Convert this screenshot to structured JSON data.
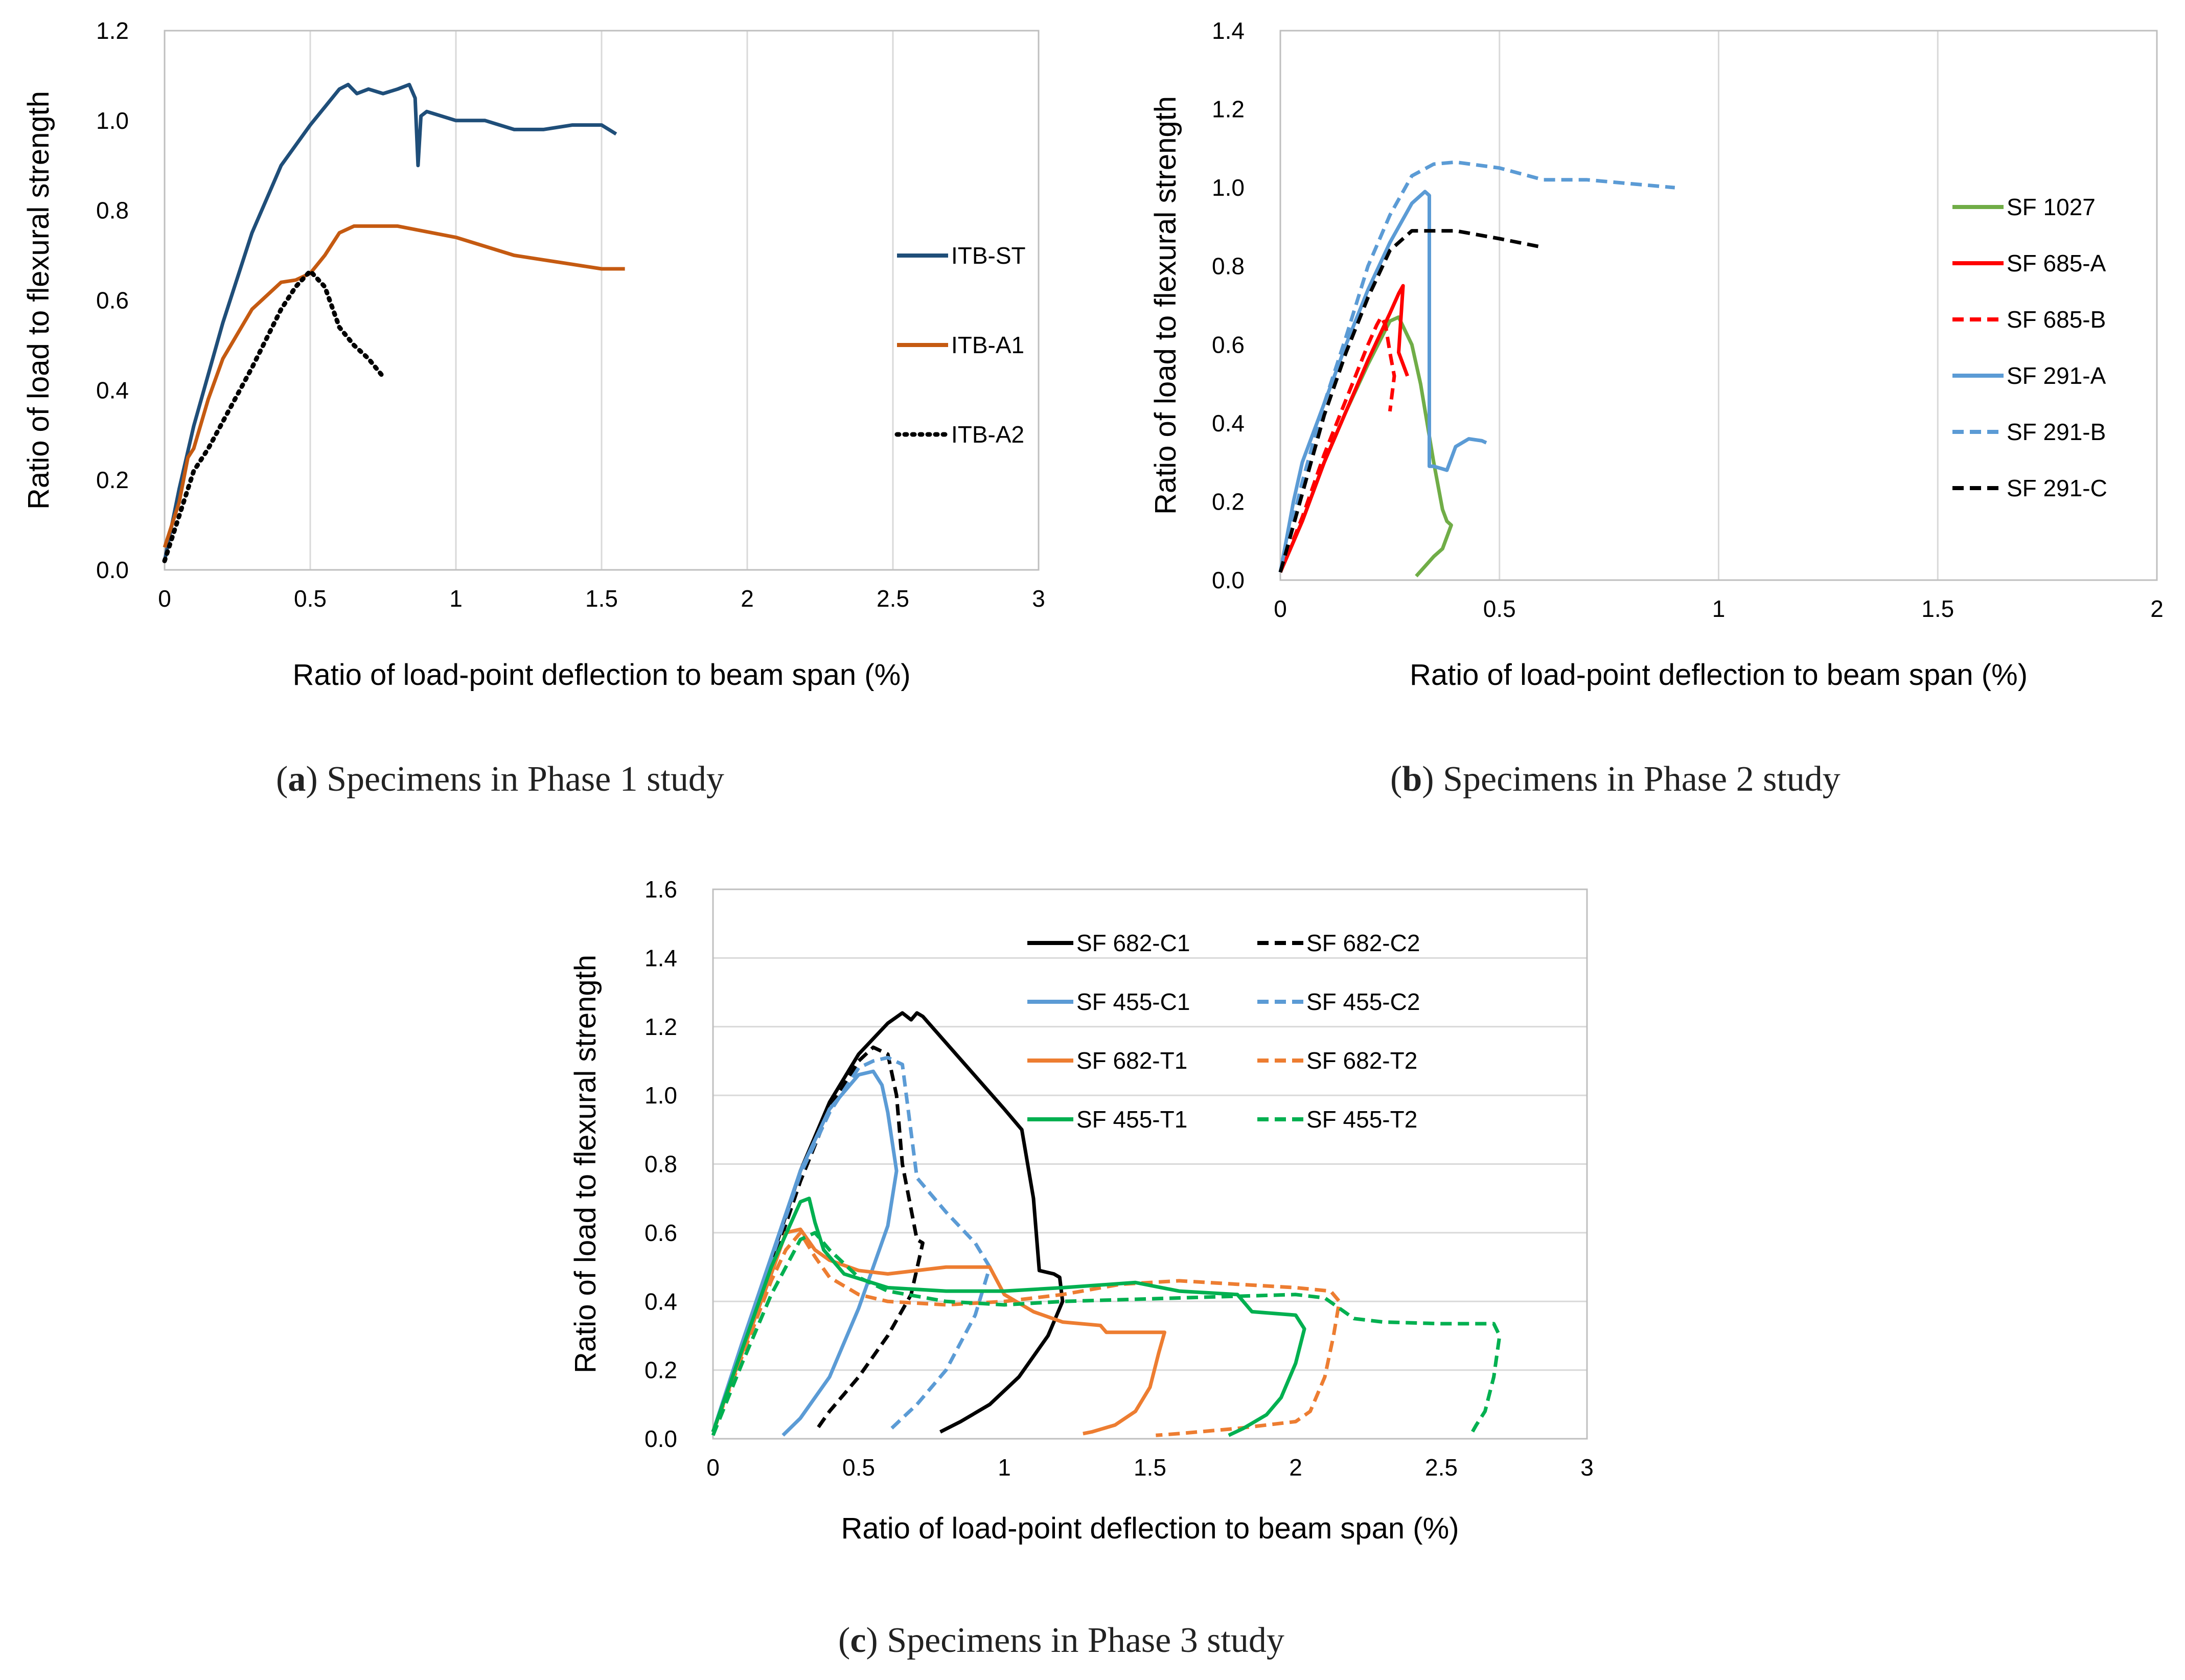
{
  "captions": [
    {
      "letter": "a",
      "open": "(",
      "close": ")",
      "text": " Specimens in Phase 1 study"
    },
    {
      "letter": "b",
      "open": "(",
      "close": ")",
      "text": " Specimens in Phase 2 study"
    },
    {
      "letter": "c",
      "open": "(",
      "close": ")",
      "text": " Specimens in Phase 3 study"
    }
  ],
  "chart_data": [
    {
      "id": "phase1",
      "type": "line",
      "xlabel": "Ratio of load-point deflection to beam span (%)",
      "ylabel": "Ratio of load to flexural strength",
      "xlim": [
        0,
        3
      ],
      "ylim": [
        0,
        1.2
      ],
      "xticks": [
        0,
        0.5,
        1,
        1.5,
        2,
        2.5,
        3
      ],
      "xtick_labels": [
        "0",
        "0.5",
        "1",
        "1.5",
        "2",
        "2.5",
        "3"
      ],
      "yticks": [
        0,
        0.2,
        0.4,
        0.6,
        0.8,
        1.0,
        1.2
      ],
      "ytick_labels": [
        "0.0",
        "0.2",
        "0.4",
        "0.6",
        "0.8",
        "1.0",
        "1.2"
      ],
      "grid": "vertical",
      "legend": "right",
      "series": [
        {
          "name": "ITB-ST",
          "color": "#1f4e79",
          "dash": "solid",
          "x": [
            0,
            0.05,
            0.1,
            0.2,
            0.3,
            0.4,
            0.5,
            0.55,
            0.6,
            0.63,
            0.66,
            0.7,
            0.75,
            0.8,
            0.84,
            0.86,
            0.87,
            0.88,
            0.9,
            1.0,
            1.1,
            1.2,
            1.3,
            1.4,
            1.5,
            1.55
          ],
          "y": [
            0.02,
            0.18,
            0.32,
            0.55,
            0.75,
            0.9,
            0.99,
            1.03,
            1.07,
            1.08,
            1.06,
            1.07,
            1.06,
            1.07,
            1.08,
            1.05,
            0.9,
            1.01,
            1.02,
            1.0,
            1.0,
            0.98,
            0.98,
            0.99,
            0.99,
            0.97
          ]
        },
        {
          "name": "ITB-A1",
          "color": "#c55a11",
          "dash": "solid",
          "x": [
            0,
            0.05,
            0.08,
            0.1,
            0.15,
            0.2,
            0.3,
            0.4,
            0.45,
            0.5,
            0.55,
            0.6,
            0.65,
            0.8,
            1.0,
            1.2,
            1.3,
            1.4,
            1.5,
            1.58
          ],
          "y": [
            0.05,
            0.15,
            0.25,
            0.27,
            0.38,
            0.47,
            0.58,
            0.64,
            0.645,
            0.66,
            0.7,
            0.75,
            0.765,
            0.765,
            0.74,
            0.7,
            0.69,
            0.68,
            0.67,
            0.67
          ]
        },
        {
          "name": "ITB-A2",
          "color": "#000000",
          "dash": "dotted",
          "x": [
            0,
            0.05,
            0.1,
            0.15,
            0.2,
            0.3,
            0.4,
            0.45,
            0.5,
            0.55,
            0.6,
            0.65,
            0.7,
            0.75
          ],
          "y": [
            0.02,
            0.12,
            0.22,
            0.27,
            0.33,
            0.45,
            0.58,
            0.63,
            0.665,
            0.63,
            0.54,
            0.5,
            0.47,
            0.43
          ]
        }
      ]
    },
    {
      "id": "phase2",
      "type": "line",
      "xlabel": "Ratio of load-point deflection to beam span (%)",
      "ylabel": "Ratio of load to flexural strength",
      "xlim": [
        0,
        2
      ],
      "ylim": [
        0,
        1.4
      ],
      "xticks": [
        0,
        0.5,
        1,
        1.5,
        2
      ],
      "xtick_labels": [
        "0",
        "0.5",
        "1",
        "1.5",
        "2"
      ],
      "yticks": [
        0,
        0.2,
        0.4,
        0.6,
        0.8,
        1.0,
        1.2,
        1.4
      ],
      "ytick_labels": [
        "0.0",
        "0.2",
        "0.4",
        "0.6",
        "0.8",
        "1.0",
        "1.2",
        "1.4"
      ],
      "grid": "vertical",
      "legend": "right",
      "series": [
        {
          "name": "SF 1027",
          "color": "#70ad47",
          "dash": "solid",
          "x": [
            0,
            0.05,
            0.1,
            0.15,
            0.2,
            0.25,
            0.27,
            0.3,
            0.32,
            0.35,
            0.37,
            0.38,
            0.39,
            0.37,
            0.35,
            0.31
          ],
          "y": [
            0.02,
            0.15,
            0.3,
            0.43,
            0.55,
            0.66,
            0.67,
            0.6,
            0.5,
            0.3,
            0.18,
            0.15,
            0.14,
            0.08,
            0.06,
            0.01
          ]
        },
        {
          "name": "SF 685-A",
          "color": "#ff0000",
          "dash": "solid",
          "x": [
            0,
            0.05,
            0.1,
            0.15,
            0.2,
            0.25,
            0.27,
            0.28,
            0.27,
            0.29
          ],
          "y": [
            0.02,
            0.15,
            0.3,
            0.43,
            0.56,
            0.68,
            0.73,
            0.75,
            0.58,
            0.52
          ]
        },
        {
          "name": "SF 685-B",
          "color": "#ff0000",
          "dash": "dashed",
          "x": [
            0,
            0.05,
            0.1,
            0.15,
            0.2,
            0.22,
            0.23,
            0.24,
            0.25,
            0.26,
            0.25
          ],
          "y": [
            0.02,
            0.16,
            0.32,
            0.46,
            0.6,
            0.65,
            0.67,
            0.65,
            0.58,
            0.52,
            0.43
          ]
        },
        {
          "name": "SF 291-A",
          "color": "#5b9bd5",
          "dash": "solid",
          "x": [
            0,
            0.03,
            0.05,
            0.1,
            0.15,
            0.2,
            0.25,
            0.3,
            0.33,
            0.34,
            0.34,
            0.35,
            0.38,
            0.4,
            0.43,
            0.46,
            0.47
          ],
          "y": [
            0.02,
            0.2,
            0.3,
            0.45,
            0.6,
            0.74,
            0.86,
            0.96,
            0.99,
            0.98,
            0.29,
            0.29,
            0.28,
            0.34,
            0.36,
            0.355,
            0.35
          ]
        },
        {
          "name": "SF 291-B",
          "color": "#5b9bd5",
          "dash": "dashed",
          "x": [
            0,
            0.05,
            0.1,
            0.15,
            0.2,
            0.25,
            0.3,
            0.35,
            0.4,
            0.5,
            0.6,
            0.7,
            0.8,
            0.9
          ],
          "y": [
            0.02,
            0.25,
            0.45,
            0.62,
            0.8,
            0.93,
            1.03,
            1.06,
            1.065,
            1.05,
            1.02,
            1.02,
            1.01,
            1.0
          ]
        },
        {
          "name": "SF 291-C",
          "color": "#000000",
          "dash": "dashed",
          "x": [
            0,
            0.05,
            0.1,
            0.15,
            0.2,
            0.25,
            0.3,
            0.35,
            0.4,
            0.5,
            0.59
          ],
          "y": [
            0.02,
            0.22,
            0.42,
            0.58,
            0.72,
            0.84,
            0.89,
            0.89,
            0.89,
            0.87,
            0.85
          ]
        }
      ]
    },
    {
      "id": "phase3",
      "type": "line",
      "xlabel": "Ratio of load-point deflection to beam span (%)",
      "ylabel": "Ratio of load to flexural strength",
      "xlim": [
        0,
        3
      ],
      "ylim": [
        0,
        1.6
      ],
      "xticks": [
        0,
        0.5,
        1,
        1.5,
        2,
        2.5,
        3
      ],
      "xtick_labels": [
        "0",
        "0.5",
        "1",
        "1.5",
        "2",
        "2.5",
        "3"
      ],
      "yticks": [
        0,
        0.2,
        0.4,
        0.6,
        0.8,
        1.0,
        1.2,
        1.4,
        1.6
      ],
      "ytick_labels": [
        "0.0",
        "0.2",
        "0.4",
        "0.6",
        "0.8",
        "1.0",
        "1.2",
        "1.4",
        "1.6"
      ],
      "grid": "horizontal",
      "legend": "top-right",
      "series": [
        {
          "name": "SF 682-C1",
          "color": "#000000",
          "dash": "solid",
          "x": [
            0,
            0.1,
            0.2,
            0.3,
            0.4,
            0.5,
            0.6,
            0.65,
            0.68,
            0.7,
            0.72,
            1.0,
            1.06,
            1.1,
            1.12,
            1.17,
            1.19,
            1.2,
            1.15,
            1.05,
            0.95,
            0.85,
            0.78
          ],
          "y": [
            0.02,
            0.27,
            0.52,
            0.78,
            0.98,
            1.12,
            1.21,
            1.24,
            1.22,
            1.24,
            1.23,
            0.96,
            0.9,
            0.7,
            0.49,
            0.48,
            0.47,
            0.4,
            0.3,
            0.18,
            0.1,
            0.05,
            0.02
          ]
        },
        {
          "name": "SF 682-C2",
          "color": "#000000",
          "dash": "dashed",
          "x": [
            0,
            0.1,
            0.2,
            0.3,
            0.4,
            0.5,
            0.55,
            0.6,
            0.63,
            0.65,
            0.7,
            0.72,
            0.68,
            0.6,
            0.5,
            0.4,
            0.35
          ],
          "y": [
            0.02,
            0.25,
            0.5,
            0.75,
            0.96,
            1.1,
            1.14,
            1.12,
            1.0,
            0.8,
            0.58,
            0.57,
            0.42,
            0.3,
            0.18,
            0.08,
            0.02
          ]
        },
        {
          "name": "SF 455-C1",
          "color": "#5b9bd5",
          "dash": "solid",
          "x": [
            0,
            0.1,
            0.2,
            0.3,
            0.4,
            0.5,
            0.55,
            0.58,
            0.6,
            0.63,
            0.6,
            0.5,
            0.4,
            0.3,
            0.24
          ],
          "y": [
            0.02,
            0.28,
            0.53,
            0.78,
            0.96,
            1.06,
            1.07,
            1.03,
            0.95,
            0.78,
            0.62,
            0.38,
            0.18,
            0.06,
            0.01
          ]
        },
        {
          "name": "SF 455-C2",
          "color": "#5b9bd5",
          "dash": "dashed",
          "x": [
            0,
            0.1,
            0.2,
            0.3,
            0.4,
            0.5,
            0.55,
            0.6,
            0.65,
            0.7,
            0.8,
            0.9,
            0.95,
            0.9,
            0.8,
            0.7,
            0.6
          ],
          "y": [
            0.02,
            0.27,
            0.52,
            0.77,
            0.95,
            1.08,
            1.1,
            1.11,
            1.09,
            0.76,
            0.66,
            0.57,
            0.5,
            0.36,
            0.2,
            0.1,
            0.02
          ]
        },
        {
          "name": "SF 682-T1",
          "color": "#ed7d31",
          "dash": "solid",
          "x": [
            0,
            0.1,
            0.2,
            0.25,
            0.3,
            0.35,
            0.4,
            0.5,
            0.6,
            0.8,
            0.95,
            1.0,
            1.1,
            1.2,
            1.33,
            1.35,
            1.45,
            1.55,
            1.53,
            1.5,
            1.45,
            1.38,
            1.3,
            1.27
          ],
          "y": [
            0.02,
            0.25,
            0.48,
            0.6,
            0.61,
            0.55,
            0.52,
            0.49,
            0.48,
            0.5,
            0.5,
            0.42,
            0.37,
            0.34,
            0.33,
            0.31,
            0.31,
            0.31,
            0.25,
            0.15,
            0.08,
            0.04,
            0.02,
            0.015
          ]
        },
        {
          "name": "SF 682-T2",
          "color": "#ed7d31",
          "dash": "dashed",
          "x": [
            0,
            0.1,
            0.2,
            0.25,
            0.3,
            0.35,
            0.4,
            0.5,
            0.6,
            0.8,
            1.0,
            1.2,
            1.4,
            1.6,
            1.8,
            2.0,
            2.12,
            2.15,
            2.13,
            2.1,
            2.05,
            2.0,
            1.9,
            1.8,
            1.6,
            1.52
          ],
          "y": [
            0.02,
            0.24,
            0.46,
            0.55,
            0.6,
            0.53,
            0.47,
            0.42,
            0.4,
            0.39,
            0.4,
            0.42,
            0.45,
            0.46,
            0.45,
            0.44,
            0.43,
            0.4,
            0.3,
            0.18,
            0.08,
            0.05,
            0.04,
            0.03,
            0.015,
            0.01
          ]
        },
        {
          "name": "SF 455-T1",
          "color": "#00b050",
          "dash": "solid",
          "x": [
            0,
            0.1,
            0.2,
            0.3,
            0.33,
            0.35,
            0.38,
            0.45,
            0.6,
            0.8,
            1.0,
            1.2,
            1.45,
            1.6,
            1.8,
            1.85,
            2.0,
            2.03,
            2.0,
            1.95,
            1.9,
            1.82,
            1.77
          ],
          "y": [
            0.02,
            0.26,
            0.5,
            0.69,
            0.7,
            0.63,
            0.55,
            0.48,
            0.44,
            0.43,
            0.43,
            0.44,
            0.455,
            0.43,
            0.42,
            0.37,
            0.36,
            0.32,
            0.22,
            0.12,
            0.07,
            0.03,
            0.01
          ]
        },
        {
          "name": "SF 455-T2",
          "color": "#00b050",
          "dash": "dashed",
          "x": [
            0,
            0.1,
            0.2,
            0.3,
            0.35,
            0.4,
            0.5,
            0.6,
            0.8,
            1.0,
            1.2,
            1.6,
            2.0,
            2.1,
            2.2,
            2.3,
            2.5,
            2.68,
            2.7,
            2.68,
            2.65,
            2.62,
            2.6
          ],
          "y": [
            0.01,
            0.22,
            0.42,
            0.58,
            0.6,
            0.55,
            0.47,
            0.43,
            0.4,
            0.39,
            0.4,
            0.41,
            0.42,
            0.41,
            0.35,
            0.34,
            0.335,
            0.335,
            0.3,
            0.18,
            0.08,
            0.04,
            0.01
          ]
        }
      ]
    }
  ]
}
